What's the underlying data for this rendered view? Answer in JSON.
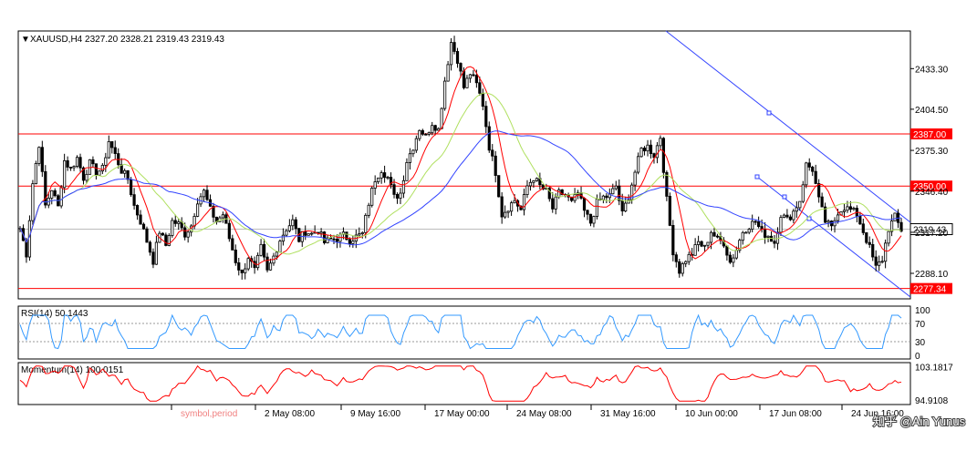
{
  "header": {
    "symbol_line": "XAUUSD,H4  2327.20 2328.21 2319.43 2319.43",
    "rsi_label": "RSI(14) 50.1443",
    "momentum_label": "Momentum(14) 100.0151"
  },
  "chart_data": {
    "type": "candlestick",
    "symbol": "XAUUSD",
    "timeframe": "H4",
    "ohlc": {
      "open": 2327.2,
      "high": 2328.21,
      "low": 2319.43,
      "close": 2319.43
    },
    "price_ticks": [
      "2433.30",
      "2404.50",
      "2375.30",
      "2346.40",
      "2317.20",
      "2288.10"
    ],
    "price_ylim": [
      2270,
      2460
    ],
    "price_path_points": [
      [
        0,
        2320
      ],
      [
        2,
        2302
      ],
      [
        4,
        2352
      ],
      [
        6,
        2380
      ],
      [
        8,
        2336
      ],
      [
        10,
        2348
      ],
      [
        12,
        2335
      ],
      [
        14,
        2368
      ],
      [
        16,
        2362
      ],
      [
        18,
        2370
      ],
      [
        20,
        2356
      ],
      [
        22,
        2366
      ],
      [
        24,
        2360
      ],
      [
        26,
        2362
      ],
      [
        28,
        2382
      ],
      [
        30,
        2372
      ],
      [
        32,
        2361
      ],
      [
        34,
        2355
      ],
      [
        36,
        2336
      ],
      [
        38,
        2325
      ],
      [
        40,
        2311
      ],
      [
        42,
        2297
      ],
      [
        44,
        2318
      ],
      [
        46,
        2308
      ],
      [
        48,
        2325
      ],
      [
        50,
        2323
      ],
      [
        52,
        2316
      ],
      [
        54,
        2322
      ],
      [
        56,
        2340
      ],
      [
        58,
        2346
      ],
      [
        60,
        2333
      ],
      [
        62,
        2325
      ],
      [
        64,
        2330
      ],
      [
        66,
        2313
      ],
      [
        68,
        2297
      ],
      [
        70,
        2287
      ],
      [
        72,
        2300
      ],
      [
        74,
        2290
      ],
      [
        76,
        2306
      ],
      [
        78,
        2289
      ],
      [
        80,
        2300
      ],
      [
        82,
        2312
      ],
      [
        84,
        2320
      ],
      [
        86,
        2325
      ],
      [
        88,
        2312
      ],
      [
        90,
        2318
      ],
      [
        92,
        2316
      ],
      [
        94,
        2319
      ],
      [
        96,
        2310
      ],
      [
        98,
        2312
      ],
      [
        100,
        2313
      ],
      [
        102,
        2315
      ],
      [
        104,
        2312
      ],
      [
        106,
        2314
      ],
      [
        108,
        2316
      ],
      [
        110,
        2338
      ],
      [
        112,
        2355
      ],
      [
        114,
        2362
      ],
      [
        116,
        2356
      ],
      [
        118,
        2342
      ],
      [
        120,
        2345
      ],
      [
        122,
        2368
      ],
      [
        124,
        2378
      ],
      [
        126,
        2391
      ],
      [
        128,
        2385
      ],
      [
        130,
        2395
      ],
      [
        132,
        2390
      ],
      [
        134,
        2425
      ],
      [
        136,
        2452
      ],
      [
        138,
        2440
      ],
      [
        140,
        2420
      ],
      [
        142,
        2430
      ],
      [
        144,
        2422
      ],
      [
        146,
        2408
      ],
      [
        148,
        2378
      ],
      [
        150,
        2360
      ],
      [
        152,
        2330
      ],
      [
        154,
        2335
      ],
      [
        156,
        2340
      ],
      [
        158,
        2333
      ],
      [
        160,
        2350
      ],
      [
        162,
        2356
      ],
      [
        164,
        2350
      ],
      [
        166,
        2346
      ],
      [
        168,
        2334
      ],
      [
        170,
        2345
      ],
      [
        172,
        2344
      ],
      [
        174,
        2338
      ],
      [
        176,
        2345
      ],
      [
        178,
        2332
      ],
      [
        180,
        2324
      ],
      [
        182,
        2338
      ],
      [
        184,
        2342
      ],
      [
        186,
        2343
      ],
      [
        188,
        2350
      ],
      [
        190,
        2330
      ],
      [
        192,
        2343
      ],
      [
        194,
        2360
      ],
      [
        196,
        2376
      ],
      [
        198,
        2378
      ],
      [
        200,
        2372
      ],
      [
        202,
        2385
      ],
      [
        204,
        2340
      ],
      [
        206,
        2304
      ],
      [
        208,
        2290
      ],
      [
        210,
        2298
      ],
      [
        212,
        2302
      ],
      [
        214,
        2310
      ],
      [
        216,
        2306
      ],
      [
        218,
        2318
      ],
      [
        220,
        2312
      ],
      [
        222,
        2310
      ],
      [
        224,
        2296
      ],
      [
        226,
        2305
      ],
      [
        228,
        2318
      ],
      [
        230,
        2322
      ],
      [
        232,
        2325
      ],
      [
        234,
        2317
      ],
      [
        236,
        2315
      ],
      [
        238,
        2310
      ],
      [
        240,
        2330
      ],
      [
        242,
        2326
      ],
      [
        244,
        2332
      ],
      [
        246,
        2340
      ],
      [
        248,
        2365
      ],
      [
        250,
        2362
      ],
      [
        252,
        2340
      ],
      [
        254,
        2325
      ],
      [
        256,
        2320
      ],
      [
        258,
        2332
      ],
      [
        260,
        2335
      ],
      [
        262,
        2333
      ],
      [
        264,
        2330
      ],
      [
        266,
        2318
      ],
      [
        268,
        2306
      ],
      [
        270,
        2292
      ],
      [
        272,
        2298
      ],
      [
        274,
        2320
      ],
      [
        276,
        2328
      ],
      [
        278,
        2319
      ]
    ],
    "moving_averages": [
      {
        "color": "#ff0000",
        "period_hint": "fast"
      },
      {
        "color": "#b0e060",
        "period_hint": "medium"
      },
      {
        "color": "#3344ff",
        "period_hint": "slow"
      }
    ],
    "horizontal_levels": [
      {
        "value": "2387.00",
        "color": "#ff0000",
        "label_bg": "#ff0000"
      },
      {
        "value": "2350.00",
        "color": "#ff0000",
        "label_bg": "#ff0000"
      },
      {
        "value": "2277.34",
        "color": "#ff0000",
        "label_bg": "#ff0000"
      }
    ],
    "current_price": "2319.43",
    "rsi": {
      "label": "RSI(14) 50.1443",
      "ticks": [
        "100",
        "70",
        "30",
        "0"
      ],
      "levels": [
        70,
        30
      ],
      "ylim": [
        0,
        100
      ],
      "color": "#3399ff"
    },
    "momentum": {
      "label": "Momentum(14) 100.0151",
      "ticks": [
        "103.1817",
        "94.9108"
      ],
      "ylim": [
        94.2,
        103.8
      ],
      "color": "#ff0000"
    },
    "x_ticks": [
      "symbol,period",
      "2 May 08:00",
      "9 May 16:00",
      "17 May 00:00",
      "24 May 08:00",
      "31 May 16:00",
      "10 Jun 00:00",
      "17 Jun 08:00",
      "24 Jun 16:00"
    ]
  },
  "watermark": "知乎 @Ain Yunus"
}
